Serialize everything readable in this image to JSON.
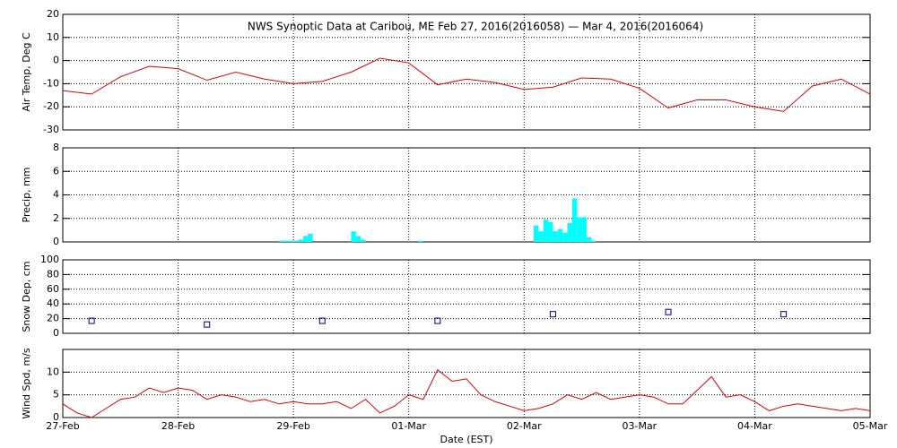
{
  "chart_data": [
    {
      "type": "line",
      "title": "NWS Synoptic Data at Caribou, ME   Feb 27, 2016(2016058) — Mar  4, 2016(2016064)",
      "ylabel": "Air Temp, Deg C",
      "color": "#e00000",
      "grid": true,
      "ylim": [
        -30,
        20
      ],
      "yticks": [
        -30,
        -20,
        -10,
        0,
        10,
        20
      ],
      "x": [
        0,
        6,
        12,
        18,
        24,
        30,
        36,
        42,
        48,
        54,
        60,
        66,
        72,
        78,
        84,
        90,
        96,
        102,
        108,
        114,
        120,
        126,
        132,
        138,
        144,
        150,
        156,
        162,
        168
      ],
      "values": [
        -13,
        -14.5,
        -7,
        -2.5,
        -3.5,
        -8.5,
        -5,
        -8,
        -10,
        -9,
        -5,
        1,
        -1,
        -10.5,
        -8,
        -9.5,
        -12.5,
        -11.5,
        -7.5,
        -8,
        -12,
        -20.5,
        -17,
        -17,
        -20,
        -22,
        -11,
        -8,
        -14.5
      ]
    },
    {
      "type": "bar",
      "ylabel": "Precip, mm",
      "color": "#00ffff",
      "grid": true,
      "ylim": [
        0,
        8
      ],
      "yticks": [
        0,
        2,
        4,
        6,
        8
      ],
      "x": [
        45,
        46,
        47,
        48,
        49,
        50,
        51,
        60,
        61,
        62,
        74,
        98,
        99,
        100,
        101,
        102,
        103,
        104,
        105,
        106,
        107,
        108,
        109,
        110
      ],
      "values": [
        0.1,
        0.1,
        0.1,
        0.1,
        0.2,
        0.5,
        0.7,
        0.9,
        0.5,
        0.2,
        0.1,
        1.4,
        0.9,
        1.9,
        1.7,
        0.9,
        1.1,
        0.8,
        1.6,
        3.7,
        2.1,
        2.1,
        0.4,
        0.1
      ]
    },
    {
      "type": "scatter",
      "ylabel": "Snow Dep, cm",
      "color": "#000080",
      "grid": true,
      "ylim": [
        0,
        100
      ],
      "yticks": [
        0,
        20,
        40,
        60,
        80,
        100
      ],
      "x": [
        6,
        30,
        54,
        78,
        102,
        126,
        150
      ],
      "values": [
        17,
        12,
        17,
        17,
        26,
        29,
        26
      ]
    },
    {
      "type": "line",
      "ylabel": "Wind Spd, m/s",
      "xlabel": "Date (EST)",
      "color": "#e00000",
      "grid": true,
      "ylim": [
        0,
        15
      ],
      "yticks": [
        0,
        5,
        10
      ],
      "xlim": [
        0,
        168
      ],
      "xticks": [
        {
          "value": 0,
          "label": "27-Feb"
        },
        {
          "value": 24,
          "label": "28-Feb"
        },
        {
          "value": 48,
          "label": "29-Feb"
        },
        {
          "value": 72,
          "label": "01-Mar"
        },
        {
          "value": 96,
          "label": "02-Mar"
        },
        {
          "value": 120,
          "label": "03-Mar"
        },
        {
          "value": 144,
          "label": "04-Mar"
        },
        {
          "value": 168,
          "label": "05-Mar"
        }
      ],
      "x": [
        0,
        3,
        6,
        9,
        12,
        15,
        18,
        21,
        24,
        27,
        30,
        33,
        36,
        39,
        42,
        45,
        48,
        51,
        54,
        57,
        60,
        63,
        66,
        69,
        72,
        75,
        78,
        81,
        84,
        87,
        90,
        93,
        96,
        99,
        102,
        105,
        108,
        111,
        114,
        117,
        120,
        123,
        126,
        129,
        132,
        135,
        138,
        141,
        144,
        147,
        150,
        153,
        156,
        159,
        162,
        165,
        168
      ],
      "values": [
        3,
        1,
        0,
        2,
        4,
        4.5,
        6.5,
        5.5,
        6.5,
        6,
        4,
        5,
        4.5,
        3.5,
        4,
        3,
        3.5,
        3,
        3,
        3.5,
        2,
        4,
        1,
        2.5,
        5,
        4,
        10.5,
        8,
        8.5,
        5,
        3.5,
        2.5,
        1.5,
        2,
        3,
        5,
        4,
        5.5,
        4,
        4.5,
        5,
        4.5,
        3,
        3,
        6,
        9,
        4.5,
        5,
        3.5,
        1.5,
        2.5,
        3,
        2.5,
        2,
        1.5,
        2,
        1.5
      ]
    }
  ]
}
